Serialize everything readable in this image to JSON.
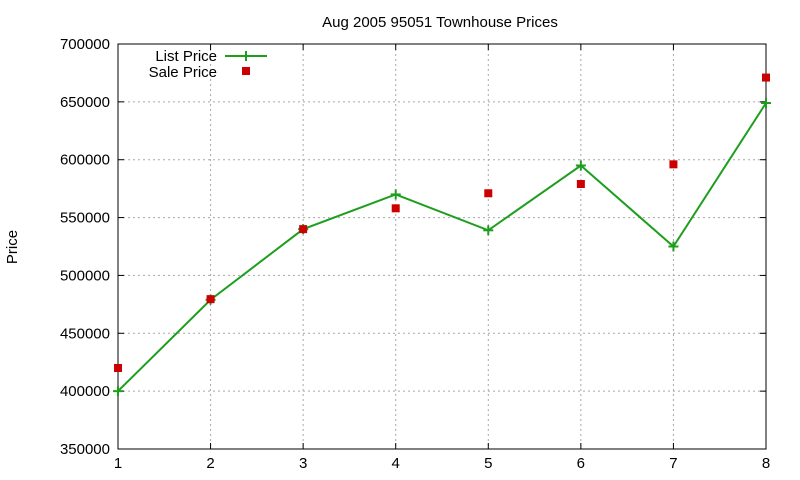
{
  "chart_data": {
    "type": "line",
    "title": "Aug 2005 95051 Townhouse Prices",
    "xlabel": "",
    "ylabel": "Price",
    "xlim": [
      1,
      8
    ],
    "ylim": [
      350000,
      700000
    ],
    "x_ticks": [
      "1",
      "2",
      "3",
      "4",
      "5",
      "6",
      "7",
      "8"
    ],
    "y_ticks": [
      "350000",
      "400000",
      "450000",
      "500000",
      "550000",
      "600000",
      "650000",
      "700000"
    ],
    "grid": true,
    "legend_position": "top-left",
    "x": [
      1,
      2,
      3,
      4,
      5,
      6,
      7,
      8
    ],
    "series": [
      {
        "name": "List Price",
        "style": "line-with-plus-markers",
        "color": "#1e9e1e",
        "values": [
          400000,
          479000,
          540000,
          570000,
          539000,
          595000,
          525000,
          649000
        ]
      },
      {
        "name": "Sale Price",
        "style": "square-points",
        "color": "#cc0000",
        "values": [
          420000,
          479500,
          540000,
          558000,
          571000,
          579000,
          596000,
          671000
        ]
      }
    ]
  }
}
